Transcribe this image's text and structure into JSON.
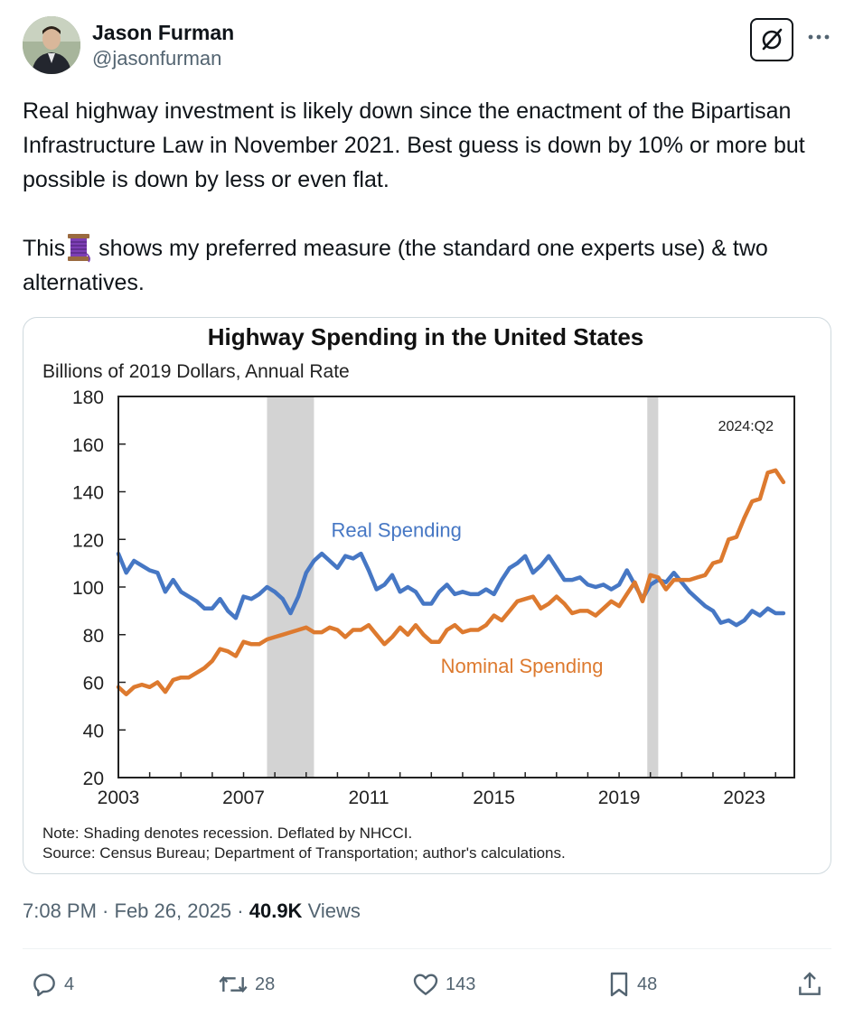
{
  "author": {
    "name": "Jason Furman",
    "handle": "@jasonfurman"
  },
  "icons": {
    "avatar": "profile-photo",
    "grok": "grok-icon",
    "more": "more-icon",
    "reply": "reply-icon",
    "retweet": "retweet-icon",
    "like": "like-icon",
    "bookmark": "bookmark-icon",
    "share": "share-icon",
    "thread": "spool-of-thread-emoji"
  },
  "tweet": {
    "paragraph1": "Real highway investment is likely down since the enactment of the Bipartisan Infrastructure Law in November 2021. Best guess is down by 10% or more but possible is down by less or even flat.",
    "paragraph2_start": "This",
    "paragraph2_end": " shows my preferred measure (the standard one experts use) & two alternatives."
  },
  "meta": {
    "time": "7:08 PM",
    "separator1": " · ",
    "date": "Feb 26, 2025",
    "separator2": " · ",
    "views_count": "40.9K",
    "views_label": " Views"
  },
  "actions": {
    "replies": "4",
    "retweets": "28",
    "likes": "143",
    "bookmarks": "48"
  },
  "colors": {
    "real": "#4677c4",
    "nominal": "#dd7a2f",
    "recession": "#d3d3d3",
    "text_secondary": "#536471"
  },
  "chart_data": {
    "type": "line",
    "title": "Highway Spending in the United States",
    "ylabel": "Billions of 2019 Dollars, Annual Rate",
    "xlabel": "",
    "ylim": [
      20,
      180
    ],
    "xlim": [
      2003,
      2024.6
    ],
    "yticks": [
      20,
      40,
      60,
      80,
      100,
      120,
      140,
      160,
      180
    ],
    "xticks": [
      2003,
      2007,
      2011,
      2015,
      2019,
      2023
    ],
    "grid": false,
    "annotation": "2024:Q2",
    "recessions": [
      [
        2007.75,
        2009.25
      ],
      [
        2019.9,
        2020.25
      ]
    ],
    "notes": [
      "Note: Shading denotes recession. Deflated by NHCCI.",
      "Source: Census Bureau; Department of Transportation; author's calculations."
    ],
    "series": [
      {
        "name": "Real Spending",
        "color": "#4677c4",
        "x": [
          2003.0,
          2003.25,
          2003.5,
          2003.75,
          2004.0,
          2004.25,
          2004.5,
          2004.75,
          2005.0,
          2005.25,
          2005.5,
          2005.75,
          2006.0,
          2006.25,
          2006.5,
          2006.75,
          2007.0,
          2007.25,
          2007.5,
          2007.75,
          2008.0,
          2008.25,
          2008.5,
          2008.75,
          2009.0,
          2009.25,
          2009.5,
          2009.75,
          2010.0,
          2010.25,
          2010.5,
          2010.75,
          2011.0,
          2011.25,
          2011.5,
          2011.75,
          2012.0,
          2012.25,
          2012.5,
          2012.75,
          2013.0,
          2013.25,
          2013.5,
          2013.75,
          2014.0,
          2014.25,
          2014.5,
          2014.75,
          2015.0,
          2015.25,
          2015.5,
          2015.75,
          2016.0,
          2016.25,
          2016.5,
          2016.75,
          2017.0,
          2017.25,
          2017.5,
          2017.75,
          2018.0,
          2018.25,
          2018.5,
          2018.75,
          2019.0,
          2019.25,
          2019.5,
          2019.75,
          2020.0,
          2020.25,
          2020.5,
          2020.75,
          2021.0,
          2021.25,
          2021.5,
          2021.75,
          2022.0,
          2022.25,
          2022.5,
          2022.75,
          2023.0,
          2023.25,
          2023.5,
          2023.75,
          2024.0,
          2024.25
        ],
        "values": [
          114,
          106,
          111,
          109,
          107,
          106,
          98,
          103,
          98,
          96,
          94,
          91,
          91,
          95,
          90,
          87,
          96,
          95,
          97,
          100,
          98,
          95,
          89,
          96,
          106,
          111,
          114,
          111,
          108,
          113,
          112,
          114,
          107,
          99,
          101,
          105,
          98,
          100,
          98,
          93,
          93,
          98,
          101,
          97,
          98,
          97,
          97,
          99,
          97,
          103,
          108,
          110,
          113,
          106,
          109,
          113,
          108,
          103,
          103,
          104,
          101,
          100,
          101,
          99,
          101,
          107,
          101,
          95,
          101,
          103,
          102,
          106,
          102,
          98,
          95,
          92,
          90,
          85,
          86,
          84,
          86,
          90,
          88,
          91,
          89,
          89
        ]
      },
      {
        "name": "Nominal Spending",
        "color": "#dd7a2f",
        "x": [
          2003.0,
          2003.25,
          2003.5,
          2003.75,
          2004.0,
          2004.25,
          2004.5,
          2004.75,
          2005.0,
          2005.25,
          2005.5,
          2005.75,
          2006.0,
          2006.25,
          2006.5,
          2006.75,
          2007.0,
          2007.25,
          2007.5,
          2007.75,
          2008.0,
          2008.25,
          2008.5,
          2008.75,
          2009.0,
          2009.25,
          2009.5,
          2009.75,
          2010.0,
          2010.25,
          2010.5,
          2010.75,
          2011.0,
          2011.25,
          2011.5,
          2011.75,
          2012.0,
          2012.25,
          2012.5,
          2012.75,
          2013.0,
          2013.25,
          2013.5,
          2013.75,
          2014.0,
          2014.25,
          2014.5,
          2014.75,
          2015.0,
          2015.25,
          2015.5,
          2015.75,
          2016.0,
          2016.25,
          2016.5,
          2016.75,
          2017.0,
          2017.25,
          2017.5,
          2017.75,
          2018.0,
          2018.25,
          2018.5,
          2018.75,
          2019.0,
          2019.25,
          2019.5,
          2019.75,
          2020.0,
          2020.25,
          2020.5,
          2020.75,
          2021.0,
          2021.25,
          2021.5,
          2021.75,
          2022.0,
          2022.25,
          2022.5,
          2022.75,
          2023.0,
          2023.25,
          2023.5,
          2023.75,
          2024.0,
          2024.25
        ],
        "values": [
          58,
          55,
          58,
          59,
          58,
          60,
          56,
          61,
          62,
          62,
          64,
          66,
          69,
          74,
          73,
          71,
          77,
          76,
          76,
          78,
          79,
          80,
          81,
          82,
          83,
          81,
          81,
          83,
          82,
          79,
          82,
          82,
          84,
          80,
          76,
          79,
          83,
          80,
          84,
          80,
          77,
          77,
          82,
          84,
          81,
          82,
          82,
          84,
          88,
          86,
          90,
          94,
          95,
          96,
          91,
          93,
          96,
          93,
          89,
          90,
          90,
          88,
          91,
          94,
          92,
          97,
          102,
          94,
          105,
          104,
          99,
          103,
          103,
          103,
          104,
          105,
          110,
          111,
          120,
          121,
          129,
          136,
          137,
          148,
          149,
          144
        ]
      }
    ],
    "labels": [
      {
        "text": "Real Spending",
        "series": "Real Spending",
        "at": [
          2009.8,
          121
        ]
      },
      {
        "text": "Nominal Spending",
        "series": "Nominal Spending",
        "at": [
          2013.3,
          64
        ]
      }
    ]
  }
}
